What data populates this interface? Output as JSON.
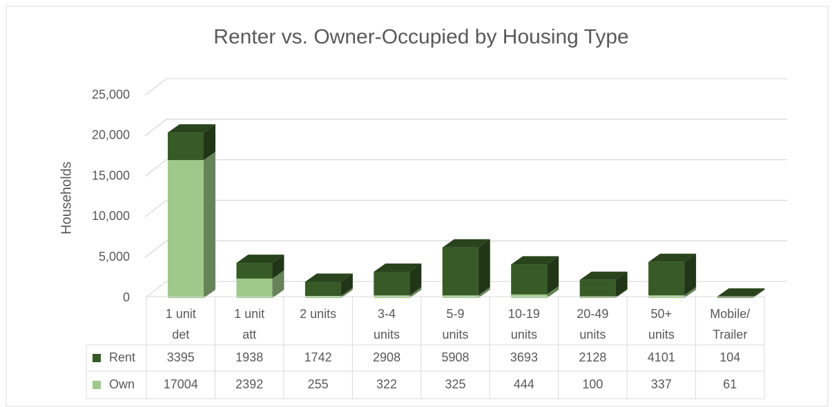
{
  "chart_data": {
    "type": "bar3d-stacked",
    "title": "Renter vs. Owner-Occupied by Housing Type",
    "y_label": "Households",
    "categories": [
      "1 unit det",
      "1 unit att",
      "2 units",
      "3-4 units",
      "5-9 units",
      "10-19 units",
      "20-49 units",
      "50+ units",
      "Mobile/Trailer"
    ],
    "series": [
      {
        "name": "Own",
        "color": "#9fc98a",
        "values": [
          17004,
          2392,
          255,
          322,
          325,
          444,
          100,
          337,
          61
        ]
      },
      {
        "name": "Rent",
        "color": "#375a26",
        "values": [
          3395,
          1938,
          1742,
          2908,
          5908,
          3693,
          2128,
          4101,
          104
        ]
      }
    ],
    "ylim": [
      0,
      25000
    ],
    "yticks": [
      0,
      {
        "value": 5000,
        "label": "5,000"
      },
      {
        "value": 10000,
        "label": "10,000"
      },
      {
        "value": 15000,
        "label": "15,000"
      },
      {
        "value": 20000,
        "label": "20,000"
      },
      {
        "value": 25000,
        "label": "25,000"
      }
    ],
    "grid": true
  }
}
